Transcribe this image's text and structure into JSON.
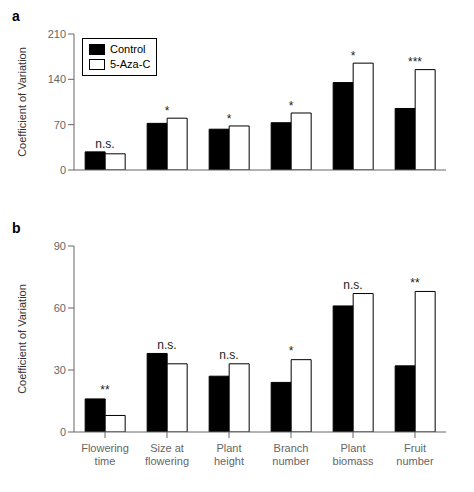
{
  "chart_data": [
    {
      "type": "bar",
      "title": "a",
      "ylabel": "Coefficient of Variation",
      "categories": [
        "Flowering\ntime",
        "Size at\nflowering",
        "Plant\nheight",
        "Branch\nnumber",
        "Plant\nbiomass",
        "Fruit\nnumber"
      ],
      "series": [
        {
          "name": "Control",
          "color": "#000000",
          "values": [
            28,
            72,
            63,
            73,
            135,
            95
          ]
        },
        {
          "name": "5-Aza-C",
          "color": "#ffffff",
          "values": [
            25,
            80,
            68,
            88,
            165,
            155
          ]
        }
      ],
      "annotations": [
        "n.s.",
        "*",
        "*",
        "*",
        "*",
        "***"
      ],
      "ylim": [
        0,
        210
      ],
      "yticks": [
        0,
        70,
        140,
        210
      ],
      "legend": "upper left",
      "tick_labels": "y"
    },
    {
      "type": "bar",
      "title": "b",
      "ylabel": "Coefficient of Variation",
      "categories": [
        "Flowering\ntime",
        "Size at\nflowering",
        "Plant\nheight",
        "Branch\nnumber",
        "Plant\nbiomass",
        "Fruit\nnumber"
      ],
      "series": [
        {
          "name": "Control",
          "color": "#000000",
          "values": [
            16,
            38,
            27,
            24,
            61,
            32
          ]
        },
        {
          "name": "5-Aza-C",
          "color": "#ffffff",
          "values": [
            8,
            33,
            33,
            35,
            67,
            68
          ]
        }
      ],
      "annotations": [
        "**",
        "n.s.",
        "n.s.",
        "*",
        "n.s.",
        "**"
      ],
      "ylim": [
        0,
        90
      ],
      "yticks": [
        0,
        30,
        60,
        90
      ]
    }
  ]
}
